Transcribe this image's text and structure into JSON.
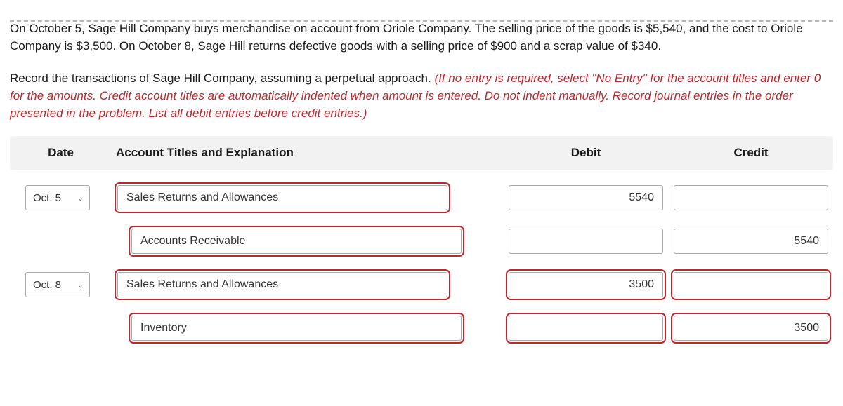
{
  "question": "On October 5, Sage Hill Company buys merchandise on account from Oriole Company. The selling price of the goods is $5,540, and the cost to Oriole Company is $3,500. On October 8, Sage Hill returns defective goods with a selling price of $900 and a scrap value of $340.",
  "instruction_lead": "Record the transactions of Sage Hill Company, assuming a perpetual approach. ",
  "instruction_italic": "(If no entry is required, select \"No Entry\" for the account titles and enter 0 for the amounts. Credit account titles are automatically indented when amount is entered. Do not indent manually. Record journal entries in the order presented in the problem. List all debit entries before credit entries.)",
  "headers": {
    "date": "Date",
    "acct": "Account Titles and Explanation",
    "debit": "Debit",
    "credit": "Credit"
  },
  "rows": [
    {
      "date": "Oct. 5",
      "acct": "Sales Returns and Allowances",
      "indent": 0,
      "debit": "5540",
      "credit": "",
      "err": {
        "acct": true
      }
    },
    {
      "date": "",
      "acct": "Accounts Receivable",
      "indent": 1,
      "debit": "",
      "credit": "5540",
      "err": {
        "acct": true
      }
    },
    {
      "date": "Oct. 8",
      "acct": "Sales Returns and Allowances",
      "indent": 0,
      "debit": "3500",
      "credit": "",
      "err": {
        "acct": true,
        "debit": true,
        "credit": true
      }
    },
    {
      "date": "",
      "acct": "Inventory",
      "indent": 1,
      "debit": "",
      "credit": "3500",
      "err": {
        "acct": true,
        "debit": true,
        "credit": true
      }
    }
  ],
  "colors": {
    "error": "#c0272d",
    "header_bg": "#f2f2f2",
    "border": "#a9a9a9",
    "text": "#1a1a1a"
  }
}
